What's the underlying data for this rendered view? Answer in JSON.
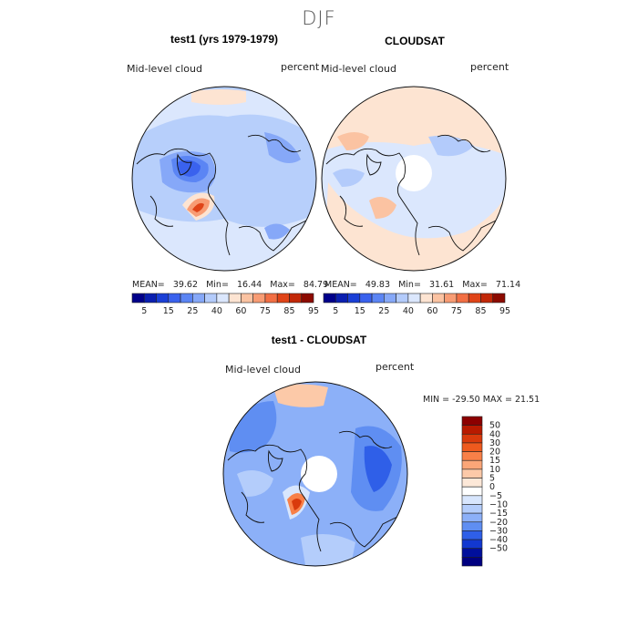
{
  "main_title": "DJF",
  "panels": [
    {
      "title": "test1 (yrs 1979-1979)",
      "left_label": "Mid-level cloud",
      "right_label": "percent",
      "mean_label": "MEAN=",
      "mean": "39.62",
      "min_label": "Min=",
      "min": "16.44",
      "max_label": "Max=",
      "max": "84.79"
    },
    {
      "title": "CLOUDSAT",
      "left_label": "Mid-level cloud",
      "right_label": "percent",
      "mean_label": "MEAN=",
      "mean": "49.83",
      "min_label": "Min=",
      "min": "31.61",
      "max_label": "Max=",
      "max": "71.14"
    },
    {
      "title": "test1 - CLOUDSAT",
      "left_label": "Mid-level cloud",
      "right_label": "percent",
      "minmax_text": "MIN = -29.50 MAX =  21.51"
    }
  ],
  "chart_data": [
    {
      "type": "heatmap",
      "projection": "polar-stereographic",
      "title": "test1 (yrs 1979-1979)",
      "variable": "Mid-level cloud",
      "units": "percent",
      "stats": {
        "mean": 39.62,
        "min": 16.44,
        "max": 84.79
      },
      "colorbar": {
        "orientation": "horizontal",
        "tick_labels": [
          "5",
          "15",
          "25",
          "40",
          "60",
          "75",
          "85",
          "95"
        ],
        "colors": [
          "#00008a",
          "#0a1fb0",
          "#1a3fd6",
          "#3a62ee",
          "#5b85f4",
          "#86a8f8",
          "#b3cbfb",
          "#dbe7fd",
          "#fde4d2",
          "#fbc3a2",
          "#f89c74",
          "#f26f44",
          "#e04418",
          "#c22808",
          "#8c0a00"
        ]
      }
    },
    {
      "type": "heatmap",
      "projection": "polar-stereographic",
      "title": "CLOUDSAT",
      "variable": "Mid-level cloud",
      "units": "percent",
      "stats": {
        "mean": 49.83,
        "min": 31.61,
        "max": 71.14
      },
      "colorbar": {
        "orientation": "horizontal",
        "tick_labels": [
          "5",
          "15",
          "25",
          "40",
          "60",
          "75",
          "85",
          "95"
        ],
        "colors": [
          "#00008a",
          "#0a1fb0",
          "#1a3fd6",
          "#3a62ee",
          "#5b85f4",
          "#86a8f8",
          "#b3cbfb",
          "#dbe7fd",
          "#fde4d2",
          "#fbc3a2",
          "#f89c74",
          "#f26f44",
          "#e04418",
          "#c22808",
          "#8c0a00"
        ]
      }
    },
    {
      "type": "heatmap",
      "projection": "polar-stereographic",
      "title": "test1 - CLOUDSAT",
      "variable": "Mid-level cloud",
      "units": "percent",
      "stats": {
        "min": -29.5,
        "max": 21.51
      },
      "colorbar": {
        "orientation": "vertical",
        "tick_labels": [
          "50",
          "40",
          "30",
          "20",
          "15",
          "10",
          "5",
          "0",
          "−5",
          "−10",
          "−15",
          "−20",
          "−30",
          "−40",
          "−50"
        ],
        "colors": [
          "#8c0000",
          "#b81a00",
          "#d93a0c",
          "#ee5a1e",
          "#f88048",
          "#fba678",
          "#fcc9a8",
          "#fde8d8",
          "#ffffff",
          "#d8e6fd",
          "#b4cdfb",
          "#8cb0f8",
          "#5f8ef2",
          "#2f5fe8",
          "#1238d0",
          "#000f9c",
          "#000080"
        ]
      }
    }
  ]
}
